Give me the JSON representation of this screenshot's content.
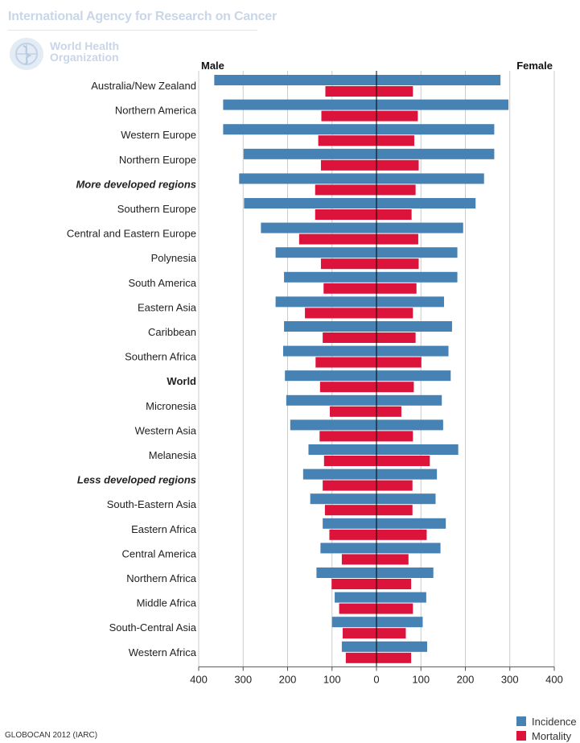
{
  "header": {
    "agency": "International Agency for Research on Cancer",
    "who_line1": "World Health",
    "who_line2": "Organization"
  },
  "footer": {
    "source": "GLOBOCAN 2012 (IARC)"
  },
  "colors": {
    "incidence": "#4682b4",
    "mortality": "#dc143c",
    "axis": "#000000",
    "grid": "#cccccc"
  },
  "chart_data": {
    "type": "bar",
    "orientation": "horizontal-butterfly",
    "left_label": "Male",
    "right_label": "Female",
    "categories": [
      "Australia/New Zealand",
      "Northern America",
      "Western Europe",
      "Northern Europe",
      "More developed regions",
      "Southern Europe",
      "Central and Eastern Europe",
      "Polynesia",
      "South America",
      "Eastern Asia",
      "Caribbean",
      "Southern Africa",
      "World",
      "Micronesia",
      "Western Asia",
      "Melanesia",
      "Less developed regions",
      "South-Eastern Asia",
      "Eastern Africa",
      "Central America",
      "Northern Africa",
      "Middle Africa",
      "South-Central Asia",
      "Western Africa"
    ],
    "emphasis": [
      "normal",
      "normal",
      "normal",
      "normal",
      "bold-italic",
      "normal",
      "normal",
      "normal",
      "normal",
      "normal",
      "normal",
      "normal",
      "bold",
      "normal",
      "normal",
      "normal",
      "bold-italic",
      "normal",
      "normal",
      "normal",
      "normal",
      "normal",
      "normal",
      "normal"
    ],
    "series": [
      {
        "name": "Incidence",
        "sex": "Male",
        "values": [
          365,
          345,
          345,
          299,
          309,
          298,
          260,
          227,
          208,
          227,
          208,
          210,
          206,
          203,
          194,
          153,
          165,
          149,
          121,
          126,
          135,
          94,
          100,
          78
        ]
      },
      {
        "name": "Incidence",
        "sex": "Female",
        "values": [
          279,
          297,
          265,
          265,
          242,
          223,
          195,
          182,
          182,
          152,
          170,
          162,
          167,
          147,
          150,
          184,
          136,
          133,
          156,
          144,
          128,
          112,
          104,
          114
        ]
      },
      {
        "name": "Mortality",
        "sex": "Male",
        "values": [
          115,
          124,
          131,
          125,
          138,
          138,
          174,
          125,
          119,
          161,
          121,
          137,
          127,
          105,
          128,
          118,
          121,
          116,
          106,
          78,
          101,
          84,
          76,
          69
        ]
      },
      {
        "name": "Mortality",
        "sex": "Female",
        "values": [
          82,
          93,
          85,
          95,
          88,
          79,
          94,
          95,
          90,
          82,
          88,
          101,
          84,
          56,
          82,
          120,
          81,
          81,
          113,
          72,
          78,
          82,
          66,
          78
        ]
      }
    ],
    "xticks": [
      "400",
      "300",
      "200",
      "100",
      "0",
      "100",
      "200",
      "300",
      "400"
    ],
    "xlim": [
      -400,
      400
    ],
    "grid": "vertical",
    "legend": {
      "position": "bottom-right",
      "entries": [
        "Incidence",
        "Mortality"
      ]
    }
  }
}
